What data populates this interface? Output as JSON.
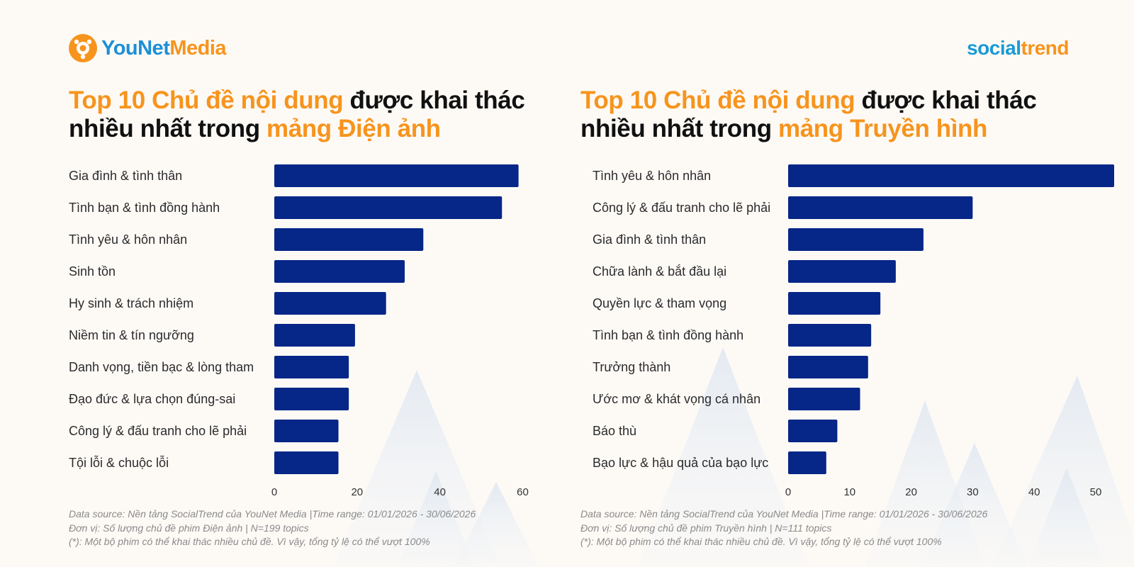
{
  "branding": {
    "left_logo_part1": "YouNet",
    "left_logo_part2": "Media",
    "right_logo_part1": "social",
    "right_logo_part2": "trend",
    "colors": {
      "orange": "#f7941d",
      "blue": "#1c8fd8",
      "bar": "#062688"
    }
  },
  "left_panel": {
    "title_orange_1": "Top 10 Chủ đề nội dung",
    "title_black_1": " được khai thác",
    "title_black_2": "nhiều nhất trong ",
    "title_orange_2": "mảng Điện ảnh",
    "note_1": "Data source: Nền tảng SocialTrend của YouNet Media |Time range: 01/01/2026 - 30/06/2026",
    "note_2": "Đơn vị: Số lượng chủ đề phim Điện ảnh | N=199 topics",
    "note_3": "(*): Một bộ phim có thể khai thác nhiều chủ đề. Vì vậy, tổng tỷ lệ có thể vượt 100%"
  },
  "right_panel": {
    "title_orange_1": "Top 10 Chủ đề nội dung",
    "title_black_1": " được khai thác",
    "title_black_2": "nhiều nhất trong ",
    "title_orange_2": "mảng Truyền hình",
    "note_1": "Data source: Nền tảng SocialTrend của YouNet Media |Time range: 01/01/2026 - 30/06/2026",
    "note_2": "Đơn vị: Số lượng chủ đề phim Truyền hình | N=111 topics",
    "note_3": "(*): Một bộ phim có thể khai thác nhiều chủ đề. Vì vậy, tổng tỷ lệ có thể vượt 100%"
  },
  "chart_data": [
    {
      "type": "bar",
      "orientation": "horizontal",
      "categories": [
        "Gia đình & tình thân",
        "Tình bạn & tình đồng hành",
        "Tình yêu & hôn nhân",
        "Sinh tồn",
        "Hy sinh & trách nhiệm",
        "Niềm tin & tín ngưỡng",
        "Danh vọng, tiền bạc & lòng tham",
        "Đạo đức & lựa chọn đúng-sai",
        "Công lý & đấu tranh cho lẽ phải",
        "Tội lỗi & chuộc lỗi"
      ],
      "values": [
        59,
        55,
        36,
        31.5,
        27,
        19.5,
        18,
        18,
        15.5,
        15.5
      ],
      "xlim": [
        0,
        63
      ],
      "xticks": [
        0,
        20,
        40,
        60
      ],
      "grid": false,
      "bar_color": "#062688"
    },
    {
      "type": "bar",
      "orientation": "horizontal",
      "categories": [
        "Tình yêu & hôn nhân",
        "Công lý & đấu tranh cho lẽ phải",
        "Gia đình & tình thân",
        "Chữa lành & bắt đầu lại",
        "Quyền lực & tham vọng",
        "Tình bạn & tình đồng hành",
        "Trưởng thành",
        "Ước mơ & khát vọng cá nhân",
        "Báo thù",
        "Bạo lực & hậu quả của bạo lực"
      ],
      "values": [
        53,
        30,
        22,
        17.5,
        15,
        13.5,
        13,
        11.7,
        8,
        6.2
      ],
      "xlim": [
        0,
        53
      ],
      "xticks": [
        0,
        10,
        20,
        30,
        40,
        50
      ],
      "grid": false,
      "bar_color": "#062688"
    }
  ]
}
